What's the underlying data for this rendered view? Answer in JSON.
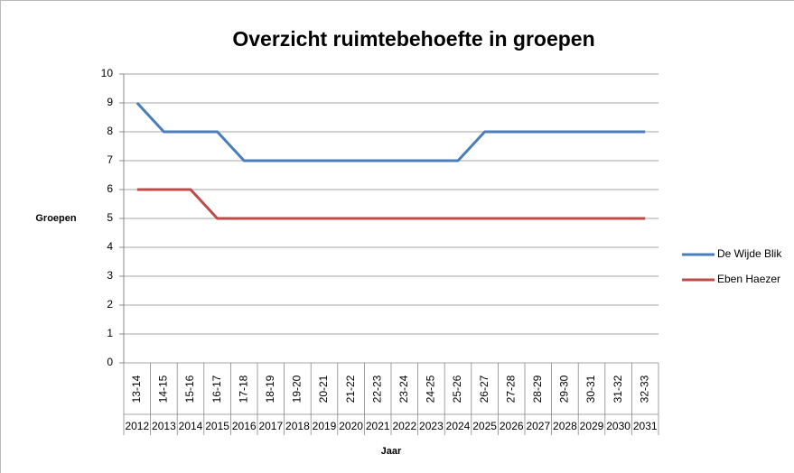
{
  "chart_data": {
    "type": "line",
    "title": "Overzicht ruimtebehoefte in groepen",
    "y_label": "Groepen",
    "x_label": "Jaar",
    "categories": [
      "13-14",
      "14-15",
      "15-16",
      "16-17",
      "17-18",
      "18-19",
      "19-20",
      "20-21",
      "21-22",
      "22-23",
      "23-24",
      "24-25",
      "25-26",
      "26-27",
      "27-28",
      "28-29",
      "29-30",
      "30-31",
      "31-32",
      "32-33"
    ],
    "categories_outer": [
      "2012",
      "2013",
      "2014",
      "2015",
      "2016",
      "2017",
      "2018",
      "2019",
      "2020",
      "2021",
      "2022",
      "2023",
      "2024",
      "2025",
      "2026",
      "2027",
      "2028",
      "2029",
      "2030",
      "2031"
    ],
    "series": [
      {
        "name": "De Wijde Blik",
        "color": "#4a7ebb",
        "values": [
          9,
          8,
          8,
          8,
          7,
          7,
          7,
          7,
          7,
          7,
          7,
          7,
          7,
          8,
          8,
          8,
          8,
          8,
          8,
          8
        ]
      },
      {
        "name": "Eben Haezer",
        "color": "#be4b48",
        "values": [
          6,
          6,
          6,
          5,
          5,
          5,
          5,
          5,
          5,
          5,
          5,
          5,
          5,
          5,
          5,
          5,
          5,
          5,
          5,
          5
        ]
      }
    ],
    "ylim": [
      0,
      10
    ],
    "yticks": [
      0,
      1,
      2,
      3,
      4,
      5,
      6,
      7,
      8,
      9,
      10
    ],
    "grid": true,
    "legend": "right"
  }
}
